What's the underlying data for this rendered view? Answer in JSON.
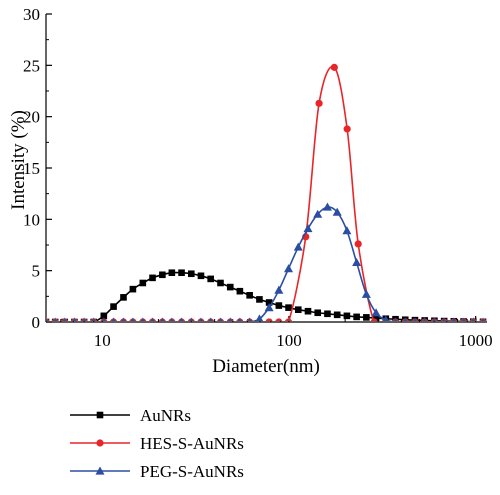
{
  "chart_data": {
    "type": "line",
    "title": "",
    "xlabel": "Diameter(nm)",
    "ylabel": "Intensity (%)",
    "xscale": "log",
    "xlim": [
      5,
      1150
    ],
    "ylim": [
      0,
      30
    ],
    "x_ticks": [
      10,
      100,
      1000
    ],
    "x_tick_labels": [
      "10",
      "100",
      "1000"
    ],
    "y_ticks": [
      0,
      5,
      10,
      15,
      20,
      25,
      30
    ],
    "y_tick_labels": [
      "0",
      "5",
      "10",
      "15",
      "20",
      "25",
      "30"
    ],
    "grid": false,
    "legend_position": "bottom-left, below plot",
    "series": [
      {
        "name": "AuNRs",
        "color": "#000000",
        "marker": "square",
        "points": [
          [
            5.0,
            0
          ],
          [
            5.6,
            0
          ],
          [
            6.3,
            0
          ],
          [
            7.1,
            0
          ],
          [
            8.0,
            0
          ],
          [
            9.0,
            0
          ],
          [
            10.2,
            0.6
          ],
          [
            11.5,
            1.5
          ],
          [
            13.0,
            2.4
          ],
          [
            14.6,
            3.2
          ],
          [
            16.5,
            3.8
          ],
          [
            18.6,
            4.3
          ],
          [
            21.0,
            4.6
          ],
          [
            23.6,
            4.8
          ],
          [
            26.6,
            4.8
          ],
          [
            30.0,
            4.7
          ],
          [
            33.8,
            4.5
          ],
          [
            38.1,
            4.2
          ],
          [
            43.0,
            3.8
          ],
          [
            48.5,
            3.4
          ],
          [
            54.6,
            3.0
          ],
          [
            61.6,
            2.6
          ],
          [
            69.5,
            2.2
          ],
          [
            78.3,
            1.9
          ],
          [
            88.3,
            1.6
          ],
          [
            99.5,
            1.4
          ],
          [
            112.2,
            1.2
          ],
          [
            126.5,
            1.05
          ],
          [
            142.6,
            0.9
          ],
          [
            160.8,
            0.8
          ],
          [
            181.3,
            0.7
          ],
          [
            204.4,
            0.6
          ],
          [
            230.4,
            0.5
          ],
          [
            259.8,
            0.45
          ],
          [
            292.9,
            0.38
          ],
          [
            330.2,
            0.32
          ],
          [
            372.2,
            0.27
          ],
          [
            419.6,
            0.22
          ],
          [
            473.1,
            0.18
          ],
          [
            533.3,
            0.15
          ],
          [
            601.3,
            0.12
          ],
          [
            677.9,
            0.09
          ],
          [
            764.2,
            0.07
          ],
          [
            861.6,
            0.05
          ],
          [
            971.4,
            0.03
          ],
          [
            1095.2,
            0.02
          ]
        ]
      },
      {
        "name": "HES-S-AuNRs",
        "color": "#e8262a",
        "marker": "circle",
        "points": [
          [
            5.0,
            0
          ],
          [
            5.6,
            0
          ],
          [
            6.3,
            0
          ],
          [
            7.1,
            0
          ],
          [
            8.0,
            0
          ],
          [
            9.0,
            0
          ],
          [
            10.2,
            0
          ],
          [
            11.5,
            0
          ],
          [
            13.0,
            0
          ],
          [
            14.6,
            0
          ],
          [
            16.5,
            0
          ],
          [
            18.6,
            0
          ],
          [
            21.0,
            0
          ],
          [
            23.6,
            0
          ],
          [
            26.6,
            0
          ],
          [
            30.0,
            0
          ],
          [
            33.8,
            0
          ],
          [
            38.1,
            0
          ],
          [
            43.0,
            0
          ],
          [
            48.5,
            0
          ],
          [
            54.6,
            0
          ],
          [
            61.6,
            0
          ],
          [
            69.5,
            0
          ],
          [
            78.3,
            0
          ],
          [
            88.3,
            0
          ],
          [
            99.5,
            0
          ],
          [
            123.0,
            8.3
          ],
          [
            145.0,
            21.3
          ],
          [
            175.0,
            24.8
          ],
          [
            205.0,
            18.8
          ],
          [
            235.0,
            7.6
          ],
          [
            286.0,
            0
          ],
          [
            330.0,
            0
          ],
          [
            372.0,
            0
          ],
          [
            420.0,
            0
          ],
          [
            473.0,
            0
          ],
          [
            533.0,
            0
          ],
          [
            601.0,
            0
          ],
          [
            678.0,
            0
          ],
          [
            764.0,
            0
          ],
          [
            862.0,
            0
          ],
          [
            971.0,
            0
          ],
          [
            1095.0,
            0
          ]
        ]
      },
      {
        "name": "PEG-S-AuNRs",
        "color": "#2b4ea3",
        "marker": "triangle",
        "points": [
          [
            5.0,
            0
          ],
          [
            5.6,
            0
          ],
          [
            6.3,
            0
          ],
          [
            7.1,
            0
          ],
          [
            8.0,
            0
          ],
          [
            9.0,
            0
          ],
          [
            10.2,
            0
          ],
          [
            11.5,
            0
          ],
          [
            13.0,
            0
          ],
          [
            14.6,
            0
          ],
          [
            16.5,
            0
          ],
          [
            18.6,
            0
          ],
          [
            21.0,
            0
          ],
          [
            23.6,
            0
          ],
          [
            26.6,
            0
          ],
          [
            30.0,
            0
          ],
          [
            33.8,
            0
          ],
          [
            38.1,
            0
          ],
          [
            43.0,
            0
          ],
          [
            48.5,
            0
          ],
          [
            54.6,
            0
          ],
          [
            61.6,
            0
          ],
          [
            69.5,
            0.3
          ],
          [
            78.3,
            1.4
          ],
          [
            88.3,
            3.1
          ],
          [
            99.5,
            5.2
          ],
          [
            112.2,
            7.3
          ],
          [
            126.5,
            9.1
          ],
          [
            142.6,
            10.5
          ],
          [
            160.8,
            11.2
          ],
          [
            181.3,
            10.7
          ],
          [
            204.4,
            8.9
          ],
          [
            230.4,
            5.8
          ],
          [
            259.8,
            2.7
          ],
          [
            292.9,
            0.9
          ],
          [
            330.2,
            0.2
          ],
          [
            372.2,
            0
          ],
          [
            419.6,
            0
          ],
          [
            473.1,
            0
          ],
          [
            533.3,
            0
          ],
          [
            601.3,
            0
          ],
          [
            677.9,
            0
          ],
          [
            764.2,
            0
          ],
          [
            861.6,
            0
          ],
          [
            971.4,
            0
          ],
          [
            1095.2,
            0
          ]
        ]
      }
    ]
  }
}
